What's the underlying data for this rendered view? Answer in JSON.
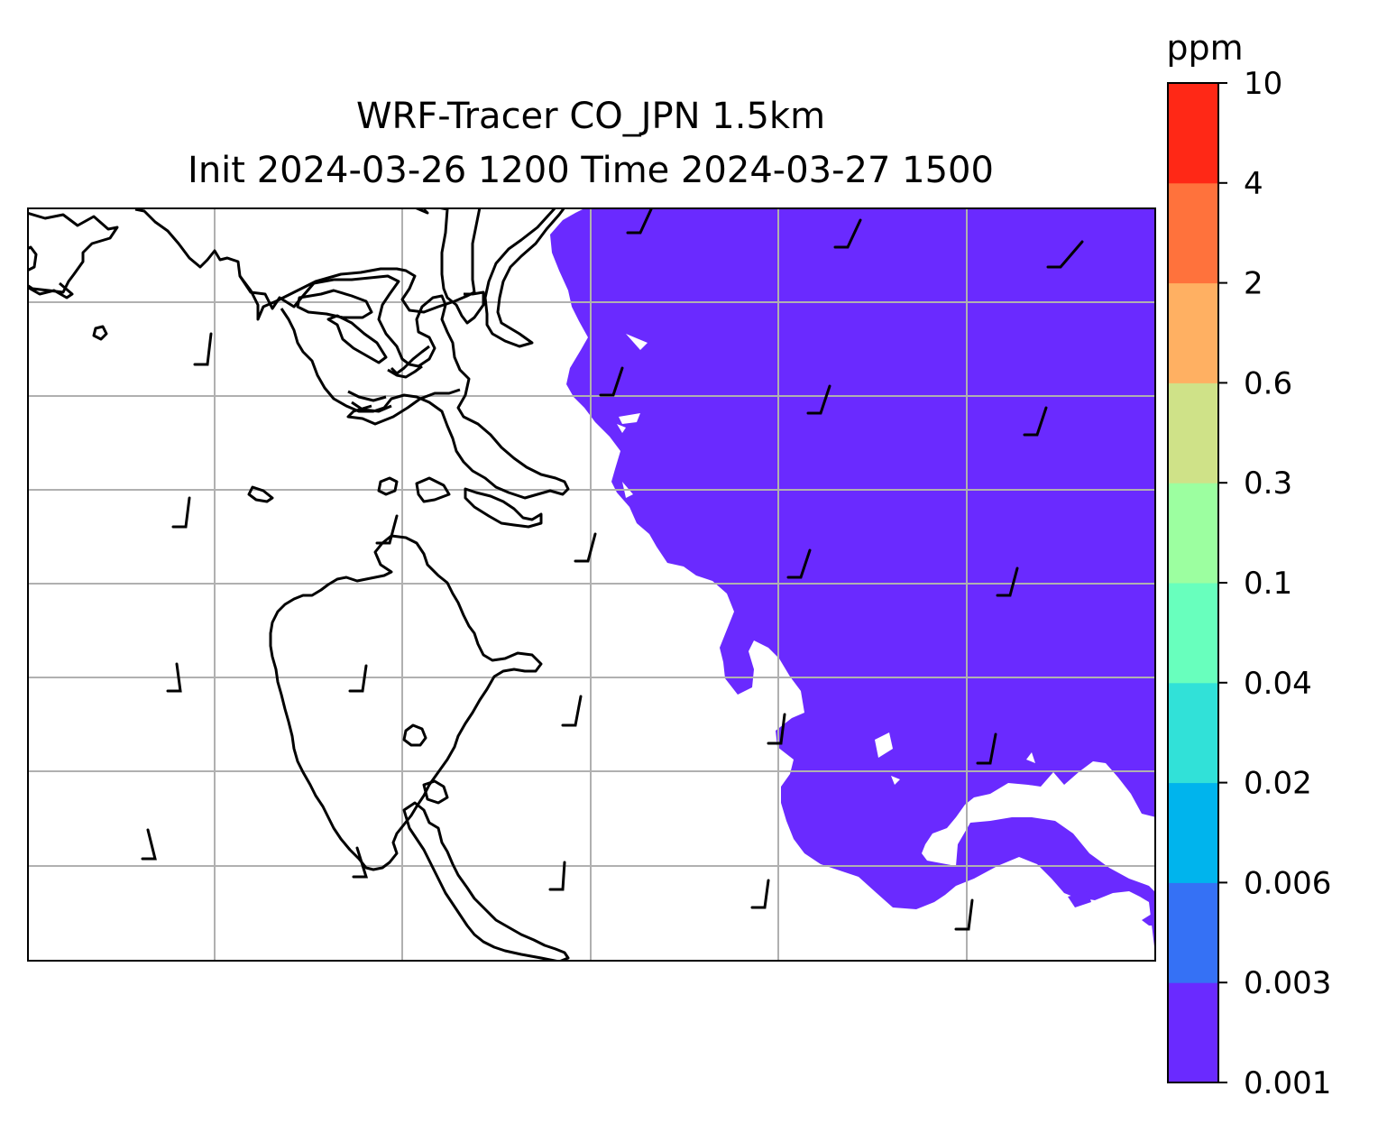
{
  "title": {
    "line1": "WRF-Tracer CO_JPN 1.5km",
    "line2": "Init 2024-03-26 1200 Time 2024-03-27 1500"
  },
  "colorbar": {
    "unit": "ppm",
    "levels": [
      "0.001",
      "0.003",
      "0.006",
      "0.02",
      "0.04",
      "0.1",
      "0.3",
      "0.6",
      "2",
      "4",
      "10"
    ],
    "colors": [
      "#6a2aff",
      "#3571f5",
      "#00b4ed",
      "#31e1d8",
      "#68ffbd",
      "#9cffa0",
      "#cfe288",
      "#ffb062",
      "#ff723c",
      "#ff2816"
    ]
  },
  "map": {
    "fill_color": "#6a2aff",
    "grid_color": "#b0b0b0",
    "coast_color": "#000000",
    "wind_barb_color": "#000000"
  }
}
